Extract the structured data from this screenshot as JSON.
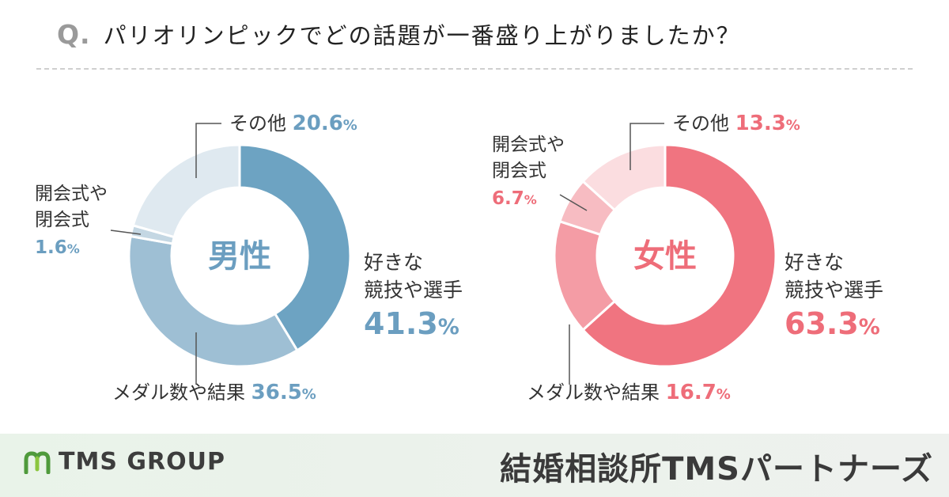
{
  "header": {
    "q_mark": "Q.",
    "question": "パリオリンピックでどの話題が一番盛り上がりましたか？"
  },
  "colors": {
    "male": [
      "#6da3c2",
      "#9ebfd4",
      "#c4d7e3",
      "#dfe9f0"
    ],
    "female": [
      "#f07480",
      "#f49ca5",
      "#f7bcc2",
      "#fbdde0"
    ],
    "male_text": "#6b9ec0",
    "female_text": "#ee6d79"
  },
  "chart_data": [
    {
      "type": "pie",
      "variant": "donut",
      "title": "男性",
      "categories": [
        "好きな競技や選手",
        "メダル数や結果",
        "開会式や閉会式",
        "その他"
      ],
      "values": [
        41.3,
        36.5,
        1.6,
        20.6
      ],
      "labels": [
        {
          "lines": [
            "好きな",
            "競技や選手"
          ],
          "value": "41.3",
          "unit": "%"
        },
        {
          "lines": [
            "メダル数や結果"
          ],
          "value": "36.5",
          "unit": "%"
        },
        {
          "lines": [
            "開会式や",
            "閉会式"
          ],
          "value": "1.6",
          "unit": "%"
        },
        {
          "lines": [
            "その他"
          ],
          "value": "20.6",
          "unit": "%"
        }
      ]
    },
    {
      "type": "pie",
      "variant": "donut",
      "title": "女性",
      "categories": [
        "好きな競技や選手",
        "メダル数や結果",
        "開会式や閉会式",
        "その他"
      ],
      "values": [
        63.3,
        16.7,
        6.7,
        13.3
      ],
      "labels": [
        {
          "lines": [
            "好きな",
            "競技や選手"
          ],
          "value": "63.3",
          "unit": "%"
        },
        {
          "lines": [
            "メダル数や結果"
          ],
          "value": "16.7",
          "unit": "%"
        },
        {
          "lines": [
            "開会式や",
            "閉会式"
          ],
          "value": "6.7",
          "unit": "%"
        },
        {
          "lines": [
            "その他"
          ],
          "value": "13.3",
          "unit": "%"
        }
      ]
    }
  ],
  "footer": {
    "brand": "TMS GROUP",
    "company": "結婚相談所TMSパートナーズ"
  }
}
